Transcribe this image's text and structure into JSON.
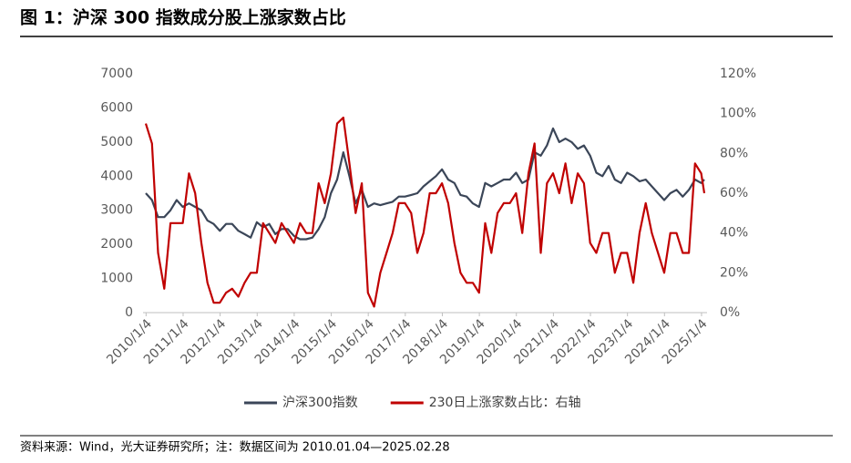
{
  "chart_data": {
    "type": "line",
    "title": "图 1：沪深 300 指数成分股上涨家数占比",
    "source": "资料来源：Wind，光大证券研究所；注：数据区间为 2010.01.04—2025.02.28",
    "x": [
      "2010-01",
      "2010-03",
      "2010-05",
      "2010-07",
      "2010-09",
      "2010-11",
      "2011-01",
      "2011-03",
      "2011-05",
      "2011-07",
      "2011-09",
      "2011-11",
      "2012-01",
      "2012-03",
      "2012-05",
      "2012-07",
      "2012-09",
      "2012-11",
      "2013-01",
      "2013-03",
      "2013-05",
      "2013-07",
      "2013-09",
      "2013-11",
      "2014-01",
      "2014-03",
      "2014-05",
      "2014-07",
      "2014-09",
      "2014-11",
      "2015-01",
      "2015-03",
      "2015-05",
      "2015-07",
      "2015-09",
      "2015-11",
      "2016-01",
      "2016-03",
      "2016-05",
      "2016-07",
      "2016-09",
      "2016-11",
      "2017-01",
      "2017-03",
      "2017-05",
      "2017-07",
      "2017-09",
      "2017-11",
      "2018-01",
      "2018-03",
      "2018-05",
      "2018-07",
      "2018-09",
      "2018-11",
      "2019-01",
      "2019-03",
      "2019-05",
      "2019-07",
      "2019-09",
      "2019-11",
      "2020-01",
      "2020-03",
      "2020-05",
      "2020-07",
      "2020-09",
      "2020-11",
      "2021-01",
      "2021-03",
      "2021-05",
      "2021-07",
      "2021-09",
      "2021-11",
      "2022-01",
      "2022-03",
      "2022-05",
      "2022-07",
      "2022-09",
      "2022-11",
      "2023-01",
      "2023-03",
      "2023-05",
      "2023-07",
      "2023-09",
      "2023-11",
      "2024-01",
      "2024-03",
      "2024-05",
      "2024-07",
      "2024-09",
      "2024-11",
      "2025-01",
      "2025-02"
    ],
    "series": [
      {
        "name": "沪深300指数",
        "color": "#3b4658",
        "axis": "y",
        "values": [
          3500,
          3300,
          2800,
          2800,
          3000,
          3300,
          3100,
          3200,
          3100,
          3000,
          2700,
          2600,
          2400,
          2600,
          2600,
          2400,
          2300,
          2200,
          2650,
          2500,
          2600,
          2300,
          2450,
          2450,
          2250,
          2150,
          2150,
          2200,
          2450,
          2800,
          3500,
          3900,
          4700,
          4000,
          3200,
          3600,
          3100,
          3200,
          3150,
          3200,
          3250,
          3400,
          3400,
          3450,
          3500,
          3700,
          3850,
          4000,
          4200,
          3900,
          3800,
          3450,
          3400,
          3200,
          3100,
          3800,
          3700,
          3800,
          3900,
          3900,
          4100,
          3800,
          3900,
          4700,
          4600,
          4900,
          5400,
          5000,
          5100,
          5000,
          4800,
          4900,
          4600,
          4100,
          4000,
          4300,
          3900,
          3800,
          4100,
          4000,
          3850,
          3900,
          3700,
          3500,
          3300,
          3500,
          3600,
          3400,
          3600,
          3900,
          3800,
          3900
        ]
      },
      {
        "name": "230日上涨家数占比：右轴",
        "color": "#c00000",
        "axis": "y2",
        "values": [
          95,
          85,
          30,
          12,
          45,
          45,
          45,
          70,
          60,
          35,
          15,
          5,
          5,
          10,
          12,
          8,
          15,
          20,
          20,
          45,
          40,
          35,
          45,
          40,
          35,
          45,
          40,
          40,
          65,
          55,
          70,
          95,
          98,
          75,
          50,
          65,
          10,
          3,
          20,
          30,
          40,
          55,
          55,
          50,
          30,
          40,
          60,
          60,
          65,
          55,
          35,
          20,
          15,
          15,
          10,
          45,
          30,
          50,
          55,
          55,
          60,
          40,
          70,
          85,
          30,
          65,
          70,
          60,
          75,
          55,
          70,
          65,
          35,
          30,
          40,
          40,
          20,
          30,
          30,
          15,
          40,
          55,
          40,
          30,
          20,
          40,
          40,
          30,
          30,
          75,
          70,
          60
        ]
      }
    ],
    "xlim": [
      "2010-01",
      "2025-02"
    ],
    "xticks": [
      {
        "value": "2010-01-04",
        "label": "2010/1/4"
      },
      {
        "value": "2011-01-04",
        "label": "2011/1/4"
      },
      {
        "value": "2012-01-04",
        "label": "2012/1/4"
      },
      {
        "value": "2013-01-04",
        "label": "2013/1/4"
      },
      {
        "value": "2014-01-04",
        "label": "2014/1/4"
      },
      {
        "value": "2015-01-04",
        "label": "2015/1/4"
      },
      {
        "value": "2016-01-04",
        "label": "2016/1/4"
      },
      {
        "value": "2017-01-04",
        "label": "2017/1/4"
      },
      {
        "value": "2018-01-04",
        "label": "2018/1/4"
      },
      {
        "value": "2019-01-04",
        "label": "2019/1/4"
      },
      {
        "value": "2020-01-04",
        "label": "2020/1/4"
      },
      {
        "value": "2021-01-04",
        "label": "2021/1/4"
      },
      {
        "value": "2022-01-04",
        "label": "2022/1/4"
      },
      {
        "value": "2023-01-04",
        "label": "2023/1/4"
      },
      {
        "value": "2024-01-04",
        "label": "2024/1/4"
      },
      {
        "value": "2025-01-04",
        "label": "2025/1/4"
      }
    ],
    "ylim": [
      0,
      7000
    ],
    "yticks": [
      0,
      1000,
      2000,
      3000,
      4000,
      5000,
      6000,
      7000
    ],
    "y2lim": [
      0,
      120
    ],
    "y2ticks": [
      {
        "value": 0,
        "label": "0%"
      },
      {
        "value": 20,
        "label": "20%"
      },
      {
        "value": 40,
        "label": "40%"
      },
      {
        "value": 60,
        "label": "60%"
      },
      {
        "value": 80,
        "label": "80%"
      },
      {
        "value": 100,
        "label": "100%"
      },
      {
        "value": 120,
        "label": "120%"
      }
    ],
    "grid": false,
    "legend": "bottom"
  }
}
